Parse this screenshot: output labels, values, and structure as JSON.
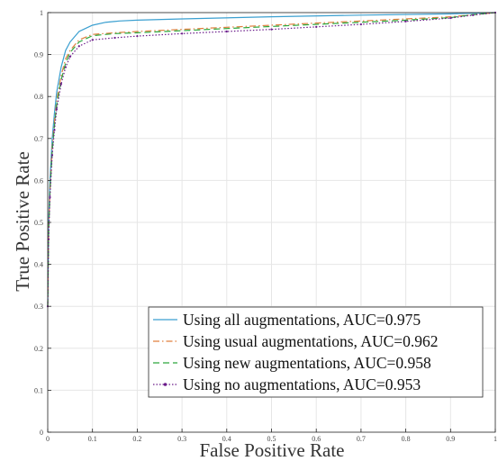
{
  "chart_data": {
    "type": "line",
    "title": "",
    "xlabel": "False Positive Rate",
    "ylabel": "True Positive Rate",
    "xlim": [
      0,
      1
    ],
    "ylim": [
      0,
      1
    ],
    "grid": true,
    "legend_position": "bottom-right",
    "xticks": [
      "0",
      "0.1",
      "0.2",
      "0.3",
      "0.4",
      "0.5",
      "0.6",
      "0.7",
      "0.8",
      "0.9",
      "1"
    ],
    "yticks": [
      "0",
      "0.1",
      "0.2",
      "0.3",
      "0.4",
      "0.5",
      "0.6",
      "0.7",
      "0.8",
      "0.9",
      "1"
    ],
    "series": [
      {
        "name": "Using all augmentations, AUC=0.975",
        "color": "#3a9fd0",
        "style": "solid",
        "x": [
          0,
          0.002,
          0.005,
          0.01,
          0.015,
          0.02,
          0.03,
          0.04,
          0.05,
          0.07,
          0.1,
          0.13,
          0.16,
          0.2,
          0.3,
          0.5,
          0.7,
          0.9,
          1.0
        ],
        "y": [
          0.3,
          0.5,
          0.6,
          0.7,
          0.76,
          0.81,
          0.87,
          0.91,
          0.93,
          0.955,
          0.97,
          0.977,
          0.98,
          0.982,
          0.985,
          0.99,
          0.994,
          0.997,
          1.0
        ]
      },
      {
        "name": "Using usual augmentations, AUC=0.962",
        "color": "#e07f3e",
        "style": "dashdot",
        "x": [
          0,
          0.002,
          0.005,
          0.01,
          0.015,
          0.02,
          0.03,
          0.04,
          0.05,
          0.07,
          0.1,
          0.15,
          0.2,
          0.3,
          0.4,
          0.5,
          0.6,
          0.7,
          0.8,
          0.9,
          0.95,
          1.0
        ],
        "y": [
          0.3,
          0.48,
          0.58,
          0.68,
          0.74,
          0.79,
          0.85,
          0.89,
          0.91,
          0.935,
          0.948,
          0.952,
          0.955,
          0.96,
          0.965,
          0.97,
          0.975,
          0.98,
          0.985,
          0.99,
          0.995,
          1.0
        ]
      },
      {
        "name": "Using new augmentations, AUC=0.958",
        "color": "#2ca83c",
        "style": "dashed",
        "x": [
          0,
          0.002,
          0.005,
          0.01,
          0.015,
          0.02,
          0.03,
          0.04,
          0.05,
          0.07,
          0.1,
          0.15,
          0.2,
          0.3,
          0.4,
          0.5,
          0.6,
          0.7,
          0.8,
          0.9,
          0.95,
          1.0
        ],
        "y": [
          0.3,
          0.47,
          0.57,
          0.67,
          0.73,
          0.78,
          0.84,
          0.88,
          0.905,
          0.93,
          0.945,
          0.95,
          0.952,
          0.957,
          0.962,
          0.967,
          0.972,
          0.977,
          0.982,
          0.988,
          0.995,
          1.0
        ]
      },
      {
        "name": "Using no augmentations, AUC=0.953",
        "color": "#6a1b8a",
        "style": "dotted-marker",
        "x": [
          0,
          0.002,
          0.005,
          0.01,
          0.015,
          0.02,
          0.03,
          0.04,
          0.05,
          0.07,
          0.1,
          0.15,
          0.2,
          0.3,
          0.4,
          0.5,
          0.6,
          0.7,
          0.8,
          0.9,
          0.95,
          1.0
        ],
        "y": [
          0.3,
          0.46,
          0.56,
          0.66,
          0.72,
          0.77,
          0.83,
          0.87,
          0.895,
          0.92,
          0.935,
          0.94,
          0.944,
          0.95,
          0.955,
          0.96,
          0.966,
          0.972,
          0.979,
          0.987,
          0.994,
          1.0
        ]
      }
    ]
  }
}
